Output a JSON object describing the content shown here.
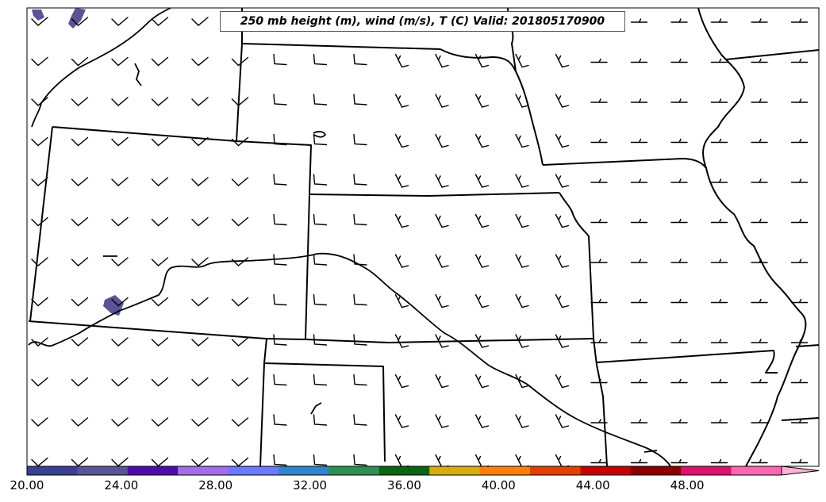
{
  "title": "250 mb height (m), wind (m/s), T (C) Valid: 201805170900",
  "colorbar": {
    "ticks": [
      "20.00",
      "24.00",
      "28.00",
      "32.00",
      "36.00",
      "40.00",
      "44.00",
      "48.00"
    ],
    "tick_values": [
      20,
      24,
      28,
      32,
      36,
      40,
      44,
      48
    ],
    "min": 20,
    "max": 52,
    "extend": "max",
    "colors": [
      "#3b3f8f",
      "#585496",
      "#4b0fa8",
      "#a26ee8",
      "#6d79ff",
      "#2f86cc",
      "#2e8f55",
      "#0a6414",
      "#d8ae08",
      "#ff8000",
      "#e83c00",
      "#c80000",
      "#8c0000",
      "#e0106c",
      "#ff66b0",
      "#ffb0d8"
    ]
  },
  "legend_location": "bottom",
  "map": {
    "projection": "regional-us-central",
    "features": [
      "state-boundaries",
      "coastline-rivers",
      "wind-barbs",
      "temperature-fill"
    ]
  }
}
